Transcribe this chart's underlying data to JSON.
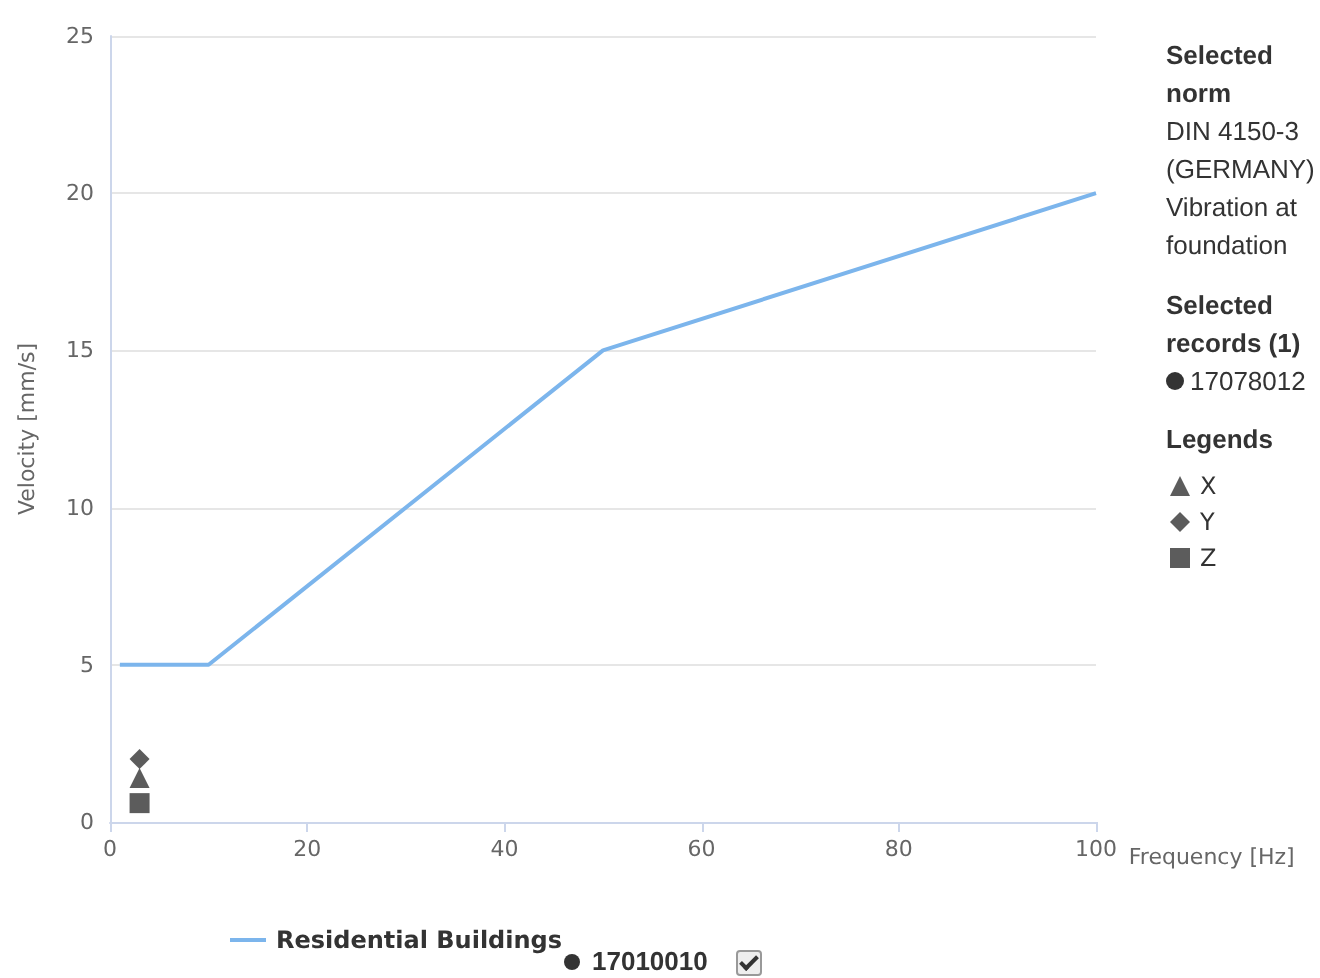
{
  "chart_data": {
    "type": "line",
    "xlabel": "Frequency [Hz]",
    "ylabel": "Velocity [mm/s]",
    "xlim": [
      0,
      100
    ],
    "xticks": [
      0,
      20,
      40,
      60,
      80,
      100
    ],
    "ylim": [
      0,
      25
    ],
    "yticks": [
      0,
      5,
      10,
      15,
      20,
      25
    ],
    "grid": "y",
    "legend": "bottom",
    "legend_title": "Legends",
    "series": [
      {
        "name": "Residential Buildings",
        "color": "#7cb5ec",
        "marker": "none",
        "x": [
          1,
          10,
          50,
          100
        ],
        "values": [
          5,
          5,
          15,
          20
        ]
      },
      {
        "name": "X",
        "type": "scatter",
        "color": "#333333",
        "marker": "triangle",
        "x": [
          3
        ],
        "values": [
          1.4
        ]
      },
      {
        "name": "Y",
        "type": "scatter",
        "color": "#333333",
        "marker": "diamond",
        "x": [
          3
        ],
        "values": [
          2.0
        ]
      },
      {
        "name": "Z",
        "type": "scatter",
        "color": "#333333",
        "marker": "square",
        "x": [
          3
        ],
        "values": [
          0.6
        ]
      }
    ],
    "annotations": [
      "Selected norm",
      "DIN 4150-3 (GERMANY) Vibration at foundation",
      "Selected records (1)",
      "17078012",
      "17010010"
    ]
  }
}
